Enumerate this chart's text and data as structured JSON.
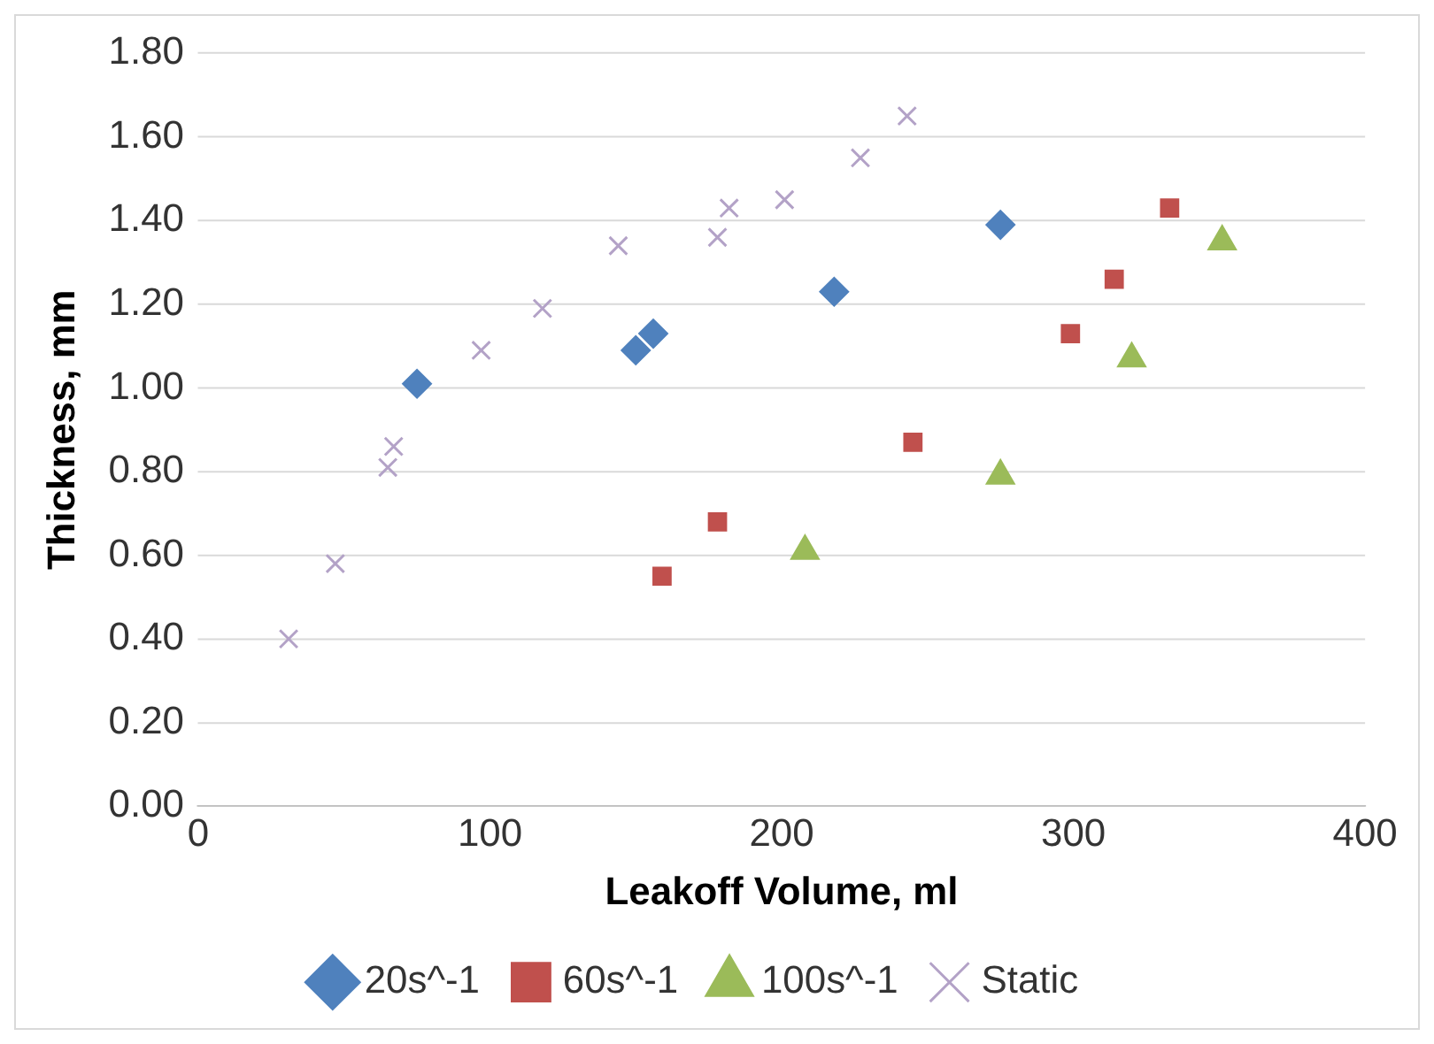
{
  "chart_data": {
    "type": "scatter",
    "xlabel": "Leakoff Volume, ml",
    "ylabel": "Thickness, mm",
    "xlim": [
      0,
      400
    ],
    "xticks": [
      0,
      100,
      200,
      300,
      400
    ],
    "ylim": [
      0,
      1.8
    ],
    "yticks": [
      {
        "value": 0,
        "label": "0.00"
      },
      {
        "value": 0.2,
        "label": "0.20"
      },
      {
        "value": 0.4,
        "label": "0.40"
      },
      {
        "value": 0.6,
        "label": "0.60"
      },
      {
        "value": 0.8,
        "label": "0.80"
      },
      {
        "value": 1,
        "label": "1.00"
      },
      {
        "value": 1.2,
        "label": "1.20"
      },
      {
        "value": 1.4,
        "label": "1.40"
      },
      {
        "value": 1.6,
        "label": "1.60"
      },
      {
        "value": 1.8,
        "label": "1.80"
      }
    ],
    "grid": "y",
    "legend": "bottom",
    "series": [
      {
        "name": "20s^-1",
        "color": "#4f81bd",
        "marker": "diamond",
        "x": [
          75,
          150,
          156,
          218,
          275
        ],
        "values": [
          1.01,
          1.09,
          1.13,
          1.23,
          1.39
        ]
      },
      {
        "name": "60s^-1",
        "color": "#c0504d",
        "marker": "square",
        "x": [
          159,
          178,
          245,
          299,
          314,
          333
        ],
        "values": [
          0.55,
          0.68,
          0.87,
          1.13,
          1.26,
          1.43
        ]
      },
      {
        "name": "100s^-1",
        "color": "#9bbb59",
        "marker": "triangle",
        "x": [
          208,
          275,
          320,
          351
        ],
        "values": [
          0.61,
          0.79,
          1.07,
          1.35
        ]
      },
      {
        "name": "Static",
        "color": "#b3a2c7",
        "marker": "cross",
        "x": [
          31,
          47,
          65,
          67,
          97,
          118,
          144,
          178,
          182,
          201,
          227,
          243
        ],
        "values": [
          0.4,
          0.58,
          0.81,
          0.86,
          1.09,
          1.19,
          1.34,
          1.36,
          1.43,
          1.45,
          1.55,
          1.65
        ]
      }
    ]
  }
}
